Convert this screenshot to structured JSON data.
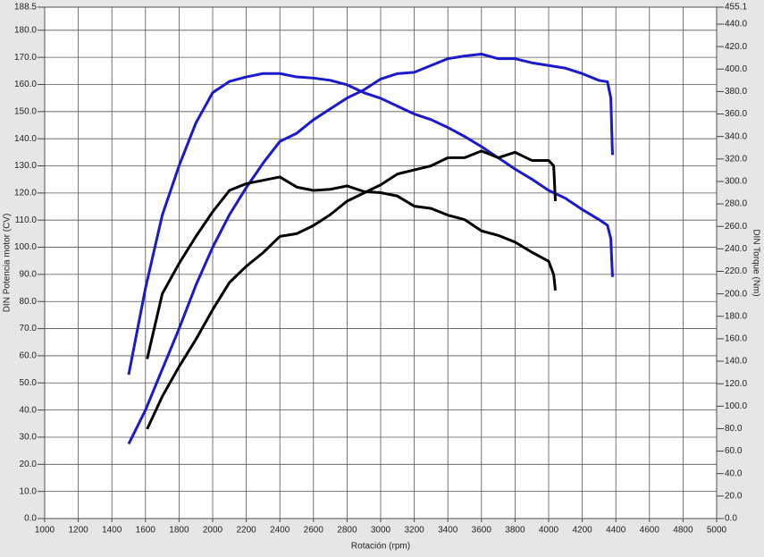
{
  "chart_data": {
    "type": "line",
    "xlabel": "Rotación (rpm)",
    "ylabel": "DIN Potencia motor (CV)",
    "y2label": "DIN Torque (Nm)",
    "xlim": [
      1000,
      5000
    ],
    "xticks": [
      1000,
      1200,
      1400,
      1600,
      1800,
      2000,
      2200,
      2400,
      2600,
      2800,
      3000,
      3200,
      3400,
      3600,
      3800,
      4000,
      4200,
      4400,
      4600,
      4800,
      5000
    ],
    "ylim": [
      0,
      188.5
    ],
    "yticks": [
      {
        "value": 0,
        "label": "0.0"
      },
      {
        "value": 10,
        "label": "10.0"
      },
      {
        "value": 20,
        "label": "20.0"
      },
      {
        "value": 30,
        "label": "30.0"
      },
      {
        "value": 40,
        "label": "40.0"
      },
      {
        "value": 50,
        "label": "50.0"
      },
      {
        "value": 60,
        "label": "60.0"
      },
      {
        "value": 70,
        "label": "70.0"
      },
      {
        "value": 80,
        "label": "80.0"
      },
      {
        "value": 90,
        "label": "90.0"
      },
      {
        "value": 100,
        "label": "100.0"
      },
      {
        "value": 110,
        "label": "110.0"
      },
      {
        "value": 120,
        "label": "120.0"
      },
      {
        "value": 130,
        "label": "130.0"
      },
      {
        "value": 140,
        "label": "140.0"
      },
      {
        "value": 150,
        "label": "150.0"
      },
      {
        "value": 160,
        "label": "160.0"
      },
      {
        "value": 170,
        "label": "170.0"
      },
      {
        "value": 180,
        "label": "180.0"
      },
      {
        "value": 188.5,
        "label": "188.5"
      }
    ],
    "y2lim": [
      0,
      455.1
    ],
    "y2ticks": [
      {
        "value": 0,
        "label": "0.0"
      },
      {
        "value": 20,
        "label": "20.0"
      },
      {
        "value": 40,
        "label": "40.0"
      },
      {
        "value": 60,
        "label": "60.0"
      },
      {
        "value": 80,
        "label": "80.0"
      },
      {
        "value": 100,
        "label": "100.0"
      },
      {
        "value": 120,
        "label": "120.0"
      },
      {
        "value": 140,
        "label": "140.0"
      },
      {
        "value": 160,
        "label": "160.0"
      },
      {
        "value": 180,
        "label": "180.0"
      },
      {
        "value": 200,
        "label": "200.0"
      },
      {
        "value": 220,
        "label": "220.0"
      },
      {
        "value": 240,
        "label": "240.0"
      },
      {
        "value": 260,
        "label": "260.0"
      },
      {
        "value": 280,
        "label": "280.0"
      },
      {
        "value": 300,
        "label": "300.0"
      },
      {
        "value": 320,
        "label": "320.0"
      },
      {
        "value": 340,
        "label": "340.0"
      },
      {
        "value": 360,
        "label": "360.0"
      },
      {
        "value": 380,
        "label": "380.0"
      },
      {
        "value": 400,
        "label": "400.0"
      },
      {
        "value": 420,
        "label": "420.0"
      },
      {
        "value": 440,
        "label": "440.0"
      },
      {
        "value": 455.1,
        "label": "455.1"
      }
    ],
    "grid": true,
    "series": [
      {
        "color": "#1a1acc",
        "axis": "y",
        "x": [
          1500,
          1600,
          1700,
          1800,
          1900,
          2000,
          2100,
          2200,
          2300,
          2400,
          2500,
          2600,
          2700,
          2800,
          2900,
          3000,
          3100,
          3200,
          3300,
          3400,
          3500,
          3600,
          3700,
          3800,
          3900,
          4000,
          4100,
          4200,
          4300,
          4350,
          4370,
          4380
        ],
        "values": [
          27.5,
          40,
          55,
          70,
          86,
          100,
          112,
          122,
          131,
          139,
          142,
          147,
          151,
          155,
          158,
          162,
          164,
          164.5,
          167,
          169.5,
          170.5,
          171.2,
          169.5,
          169.5,
          168,
          167,
          166,
          164,
          161.5,
          161,
          155,
          134
        ]
      },
      {
        "color": "#1a1acc",
        "axis": "y2",
        "x": [
          1500,
          1600,
          1700,
          1800,
          1900,
          2000,
          2100,
          2200,
          2300,
          2400,
          2500,
          2600,
          2700,
          2800,
          2900,
          3000,
          3100,
          3200,
          3300,
          3400,
          3500,
          3600,
          3700,
          3800,
          3900,
          4000,
          4100,
          4200,
          4300,
          4350,
          4370,
          4380
        ],
        "values": [
          128,
          205,
          270,
          314,
          352,
          379,
          389,
          393,
          396,
          396,
          393,
          392,
          390,
          386,
          379,
          374,
          367,
          360,
          355,
          348,
          340,
          331,
          321,
          311,
          302,
          292,
          285,
          275,
          266,
          261,
          249,
          215
        ]
      },
      {
        "color": "#000000",
        "axis": "y",
        "x": [
          1610,
          1700,
          1800,
          1900,
          2000,
          2100,
          2200,
          2300,
          2400,
          2500,
          2600,
          2700,
          2800,
          2900,
          3000,
          3100,
          3200,
          3300,
          3400,
          3500,
          3600,
          3700,
          3800,
          3900,
          4000,
          4030,
          4040
        ],
        "values": [
          33,
          45,
          56,
          66,
          77,
          87,
          93,
          98,
          104,
          105,
          108,
          112,
          117,
          120,
          123,
          127,
          128.5,
          130,
          133,
          133,
          135.5,
          133,
          135,
          132,
          132,
          130,
          117
        ]
      },
      {
        "color": "#000000",
        "axis": "y2",
        "x": [
          1610,
          1700,
          1800,
          1900,
          2000,
          2100,
          2200,
          2300,
          2400,
          2500,
          2600,
          2700,
          2800,
          2900,
          3000,
          3100,
          3200,
          3300,
          3400,
          3500,
          3600,
          3700,
          3800,
          3900,
          4000,
          4030,
          4040
        ],
        "values": [
          142,
          200,
          227,
          251,
          273,
          292,
          298,
          301,
          304,
          295,
          292,
          293,
          296,
          291,
          290,
          287,
          278,
          276,
          270,
          266,
          256,
          252,
          246,
          237,
          229,
          217,
          203
        ]
      }
    ]
  }
}
